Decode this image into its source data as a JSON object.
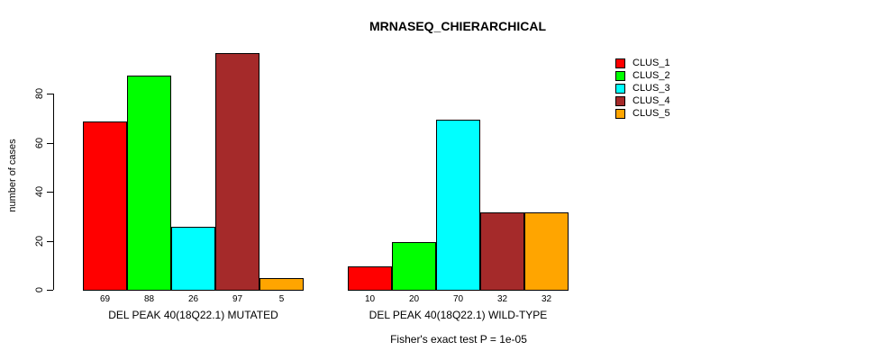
{
  "chart_data": {
    "type": "bar",
    "title": "MRNASEQ_CHIERARCHICAL",
    "ylabel": "number of cases",
    "xlabel": "",
    "ylim": [
      0,
      97
    ],
    "yticks": [
      0,
      20,
      40,
      60,
      80
    ],
    "grid": false,
    "legend_position": "right-inside",
    "bar_value_labels": true,
    "categories": [
      "DEL PEAK 40(18Q22.1) MUTATED",
      "DEL PEAK 40(18Q22.1) WILD-TYPE"
    ],
    "series": [
      {
        "name": "CLUS_1",
        "color": "#FF0000",
        "values": [
          69,
          10
        ]
      },
      {
        "name": "CLUS_2",
        "color": "#00FF00",
        "values": [
          88,
          20
        ]
      },
      {
        "name": "CLUS_3",
        "color": "#00FFFF",
        "values": [
          26,
          70
        ]
      },
      {
        "name": "CLUS_4",
        "color": "#A52A2A",
        "values": [
          97,
          32
        ]
      },
      {
        "name": "CLUS_5",
        "color": "#FFA500",
        "values": [
          5,
          32
        ]
      }
    ],
    "annotation": "Fisher's exact test P = 1e-05"
  }
}
